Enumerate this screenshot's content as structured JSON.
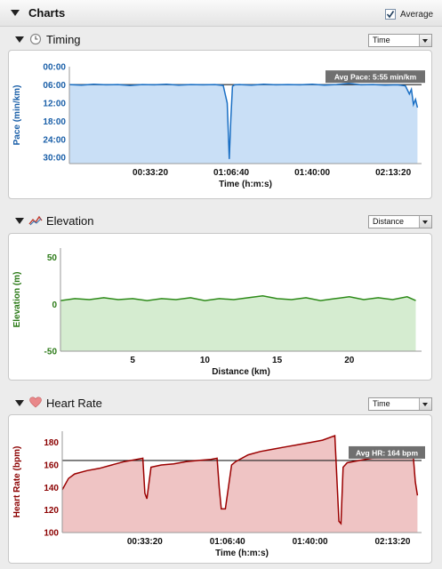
{
  "header": {
    "title": "Charts",
    "average_label": "Average",
    "average_checked": true
  },
  "timing": {
    "title": "Timing",
    "icon": "clock-icon",
    "dropdown_value": "Time",
    "annotation": "Avg Pace: 5:55 min/km",
    "chart_data": {
      "type": "area",
      "ylabel": "Pace (min/km)",
      "xlabel": "Time (h:m:s)",
      "y_ticks": [
        "00:00",
        "06:00",
        "12:00",
        "18:00",
        "24:00",
        "30:00"
      ],
      "x_ticks": [
        "00:33:20",
        "01:06:40",
        "01:40:00",
        "02:13:20"
      ],
      "y_inverted": true,
      "ylim": [
        0,
        32
      ],
      "xlim": [
        0,
        8700
      ],
      "reference_line": 5.92,
      "color": "#1a6fc4",
      "fill": "#c9dff6",
      "x": [
        0,
        300,
        600,
        900,
        1200,
        1500,
        1800,
        2100,
        2400,
        2700,
        3000,
        3300,
        3600,
        3800,
        3900,
        3950,
        3990,
        4030,
        4080,
        4200,
        4500,
        4800,
        5100,
        5400,
        5700,
        6000,
        6300,
        6600,
        6900,
        7200,
        7500,
        7800,
        8100,
        8300,
        8400,
        8450,
        8500,
        8550,
        8600
      ],
      "y": [
        5.9,
        6.1,
        5.8,
        6.0,
        5.9,
        6.2,
        5.9,
        6.0,
        5.8,
        6.1,
        5.9,
        6.0,
        5.9,
        6.2,
        12.0,
        30.5,
        17.0,
        6.5,
        6.0,
        5.9,
        6.1,
        5.8,
        6.0,
        5.9,
        6.0,
        5.8,
        6.1,
        5.9,
        5.5,
        6.0,
        5.9,
        6.1,
        6.0,
        6.3,
        9.0,
        7.5,
        12.5,
        10.8,
        13.5
      ]
    }
  },
  "elevation": {
    "title": "Elevation",
    "icon": "elevation-icon",
    "dropdown_value": "Distance",
    "chart_data": {
      "type": "area",
      "ylabel": "Elevation (m)",
      "xlabel": "Distance (km)",
      "y_ticks": [
        "50",
        "0",
        "-50"
      ],
      "x_ticks": [
        "5",
        "10",
        "15",
        "20"
      ],
      "ylim": [
        -50,
        60
      ],
      "xlim": [
        0,
        25
      ],
      "color": "#2e8b1a",
      "fill": "#d5ecd0",
      "x": [
        0,
        1,
        2,
        3,
        4,
        5,
        6,
        7,
        8,
        9,
        10,
        11,
        12,
        13,
        14,
        15,
        16,
        17,
        18,
        19,
        20,
        21,
        22,
        23,
        24,
        24.6
      ],
      "y": [
        4,
        6,
        5,
        7,
        5,
        6,
        4,
        6,
        5,
        7,
        4,
        6,
        5,
        7,
        9,
        6,
        5,
        7,
        4,
        6,
        8,
        5,
        7,
        5,
        8,
        4
      ]
    }
  },
  "heart_rate": {
    "title": "Heart Rate",
    "icon": "heart-icon",
    "dropdown_value": "Time",
    "annotation": "Avg HR: 164 bpm",
    "chart_data": {
      "type": "area",
      "ylabel": "Heart Rate (bpm)",
      "xlabel": "Time (h:m:s)",
      "y_ticks": [
        "180",
        "160",
        "140",
        "120",
        "100"
      ],
      "x_ticks": [
        "00:33:20",
        "01:06:40",
        "01:40:00",
        "02:13:20"
      ],
      "ylim": [
        100,
        190
      ],
      "xlim": [
        0,
        8700
      ],
      "reference_line": 164,
      "color": "#9b0000",
      "fill": "#efc4c4",
      "x": [
        0,
        150,
        300,
        600,
        900,
        1200,
        1500,
        1800,
        1950,
        2000,
        2050,
        2150,
        2400,
        2700,
        3000,
        3300,
        3600,
        3750,
        3800,
        3850,
        3950,
        4100,
        4200,
        4500,
        4800,
        5100,
        5400,
        5700,
        6000,
        6300,
        6600,
        6700,
        6750,
        6800,
        6900,
        7200,
        7500,
        7800,
        8100,
        8400,
        8500,
        8550,
        8600
      ],
      "y": [
        138,
        148,
        152,
        155,
        157,
        160,
        163,
        165,
        166,
        135,
        130,
        158,
        160,
        161,
        163,
        164,
        165,
        166,
        140,
        121,
        121,
        160,
        163,
        169,
        172,
        174,
        176,
        178,
        180,
        182,
        186,
        110,
        108,
        158,
        162,
        164,
        166,
        167,
        168,
        170,
        168,
        145,
        133
      ]
    }
  }
}
